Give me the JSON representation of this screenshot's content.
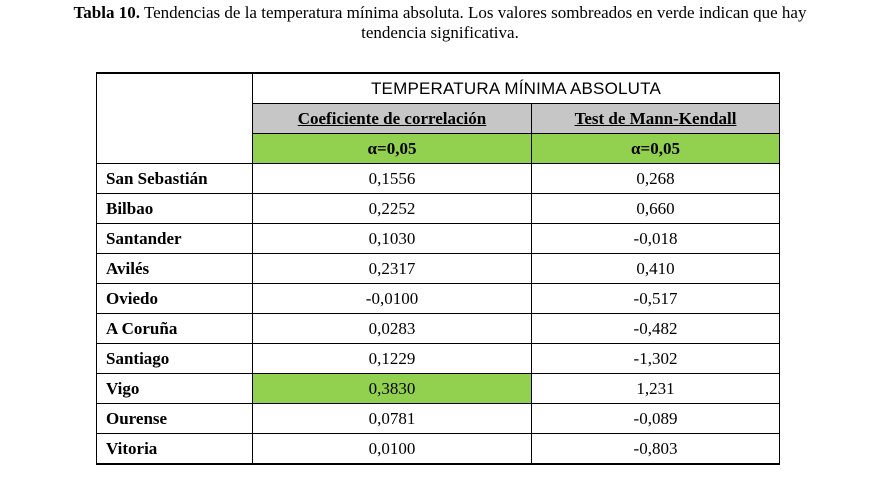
{
  "caption": {
    "label": "Tabla 10.",
    "text": "Tendencias de la temperatura mínima absoluta. Los valores sombreados en verde indican que hay",
    "text_line2": "tendencia significativa."
  },
  "table": {
    "group_header": "TEMPERATURA MÍNIMA ABSOLUTA",
    "columns": [
      "Coeficiente de correlación",
      "Test de Mann-Kendall"
    ],
    "alpha": [
      "α=0,05",
      "α=0,05"
    ],
    "highlight_color": "#92d050",
    "subheader_color": "#c6c6c6",
    "rows": [
      {
        "station": "San Sebastián",
        "corr": "0,1556",
        "mk": "0,268"
      },
      {
        "station": "Bilbao",
        "corr": "0,2252",
        "mk": "0,660"
      },
      {
        "station": "Santander",
        "corr": "0,1030",
        "mk": "-0,018"
      },
      {
        "station": "Avilés",
        "corr": "0,2317",
        "mk": "0,410"
      },
      {
        "station": "Oviedo",
        "corr": "-0,0100",
        "mk": "-0,517"
      },
      {
        "station": "A Coruña",
        "corr": "0,0283",
        "mk": "-0,482"
      },
      {
        "station": "Santiago",
        "corr": "0,1229",
        "mk": "-1,302"
      },
      {
        "station": "Vigo",
        "corr": "0,3830",
        "mk": "1,231",
        "corr_significant": true
      },
      {
        "station": "Ourense",
        "corr": "0,0781",
        "mk": "-0,089"
      },
      {
        "station": "Vitoria",
        "corr": "0,0100",
        "mk": "-0,803"
      }
    ]
  }
}
